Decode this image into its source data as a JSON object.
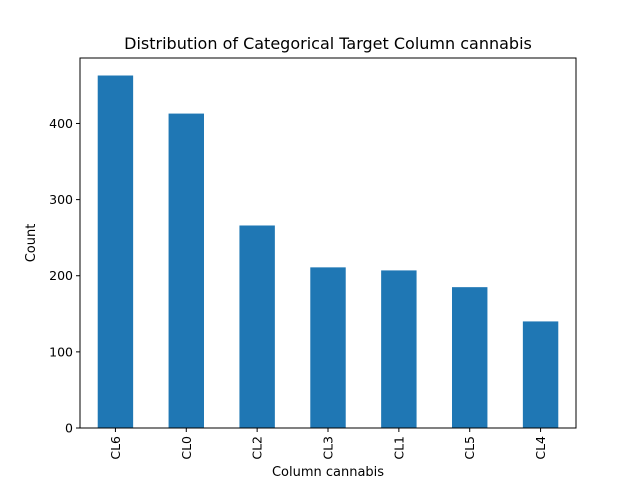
{
  "chart_data": {
    "type": "bar",
    "title": "Distribution of Categorical Target Column cannabis",
    "xlabel": "Column cannabis",
    "ylabel": "Count",
    "categories": [
      "CL6",
      "CL0",
      "CL2",
      "CL3",
      "CL1",
      "CL5",
      "CL4"
    ],
    "values": [
      463,
      413,
      266,
      211,
      207,
      185,
      140
    ],
    "ylim": [
      0,
      486
    ],
    "yticks": [
      0,
      100,
      200,
      300,
      400
    ],
    "bar_color": "#1f77b4",
    "grid": false,
    "legend": "none",
    "xtick_rotation": "vertical"
  }
}
